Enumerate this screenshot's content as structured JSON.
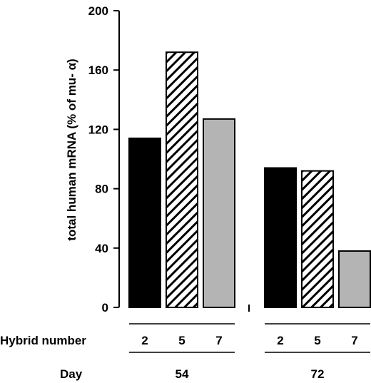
{
  "chart_data": {
    "type": "bar",
    "ylabel": "total human mRNA (% of mu- α)",
    "ylim": [
      0,
      200
    ],
    "yticks": [
      0,
      40,
      80,
      120,
      160,
      200
    ],
    "grid": false,
    "row_labels": {
      "hybrid": "Hybrid number",
      "day": "Day"
    },
    "groups": [
      {
        "day": "54",
        "bars": [
          {
            "hybrid": "2",
            "value": 114,
            "pattern": "solid-black"
          },
          {
            "hybrid": "5",
            "value": 172,
            "pattern": "diagonal-hatch"
          },
          {
            "hybrid": "7",
            "value": 127,
            "pattern": "solid-gray"
          }
        ]
      },
      {
        "day": "72",
        "bars": [
          {
            "hybrid": "2",
            "value": 94,
            "pattern": "solid-black"
          },
          {
            "hybrid": "5",
            "value": 92,
            "pattern": "diagonal-hatch"
          },
          {
            "hybrid": "7",
            "value": 38,
            "pattern": "solid-gray"
          }
        ]
      }
    ]
  },
  "colors": {
    "solid-black": "#000000",
    "solid-gray": "#b4b4b4",
    "hatch-line": "#000000",
    "hatch-background": "#ffffff"
  }
}
